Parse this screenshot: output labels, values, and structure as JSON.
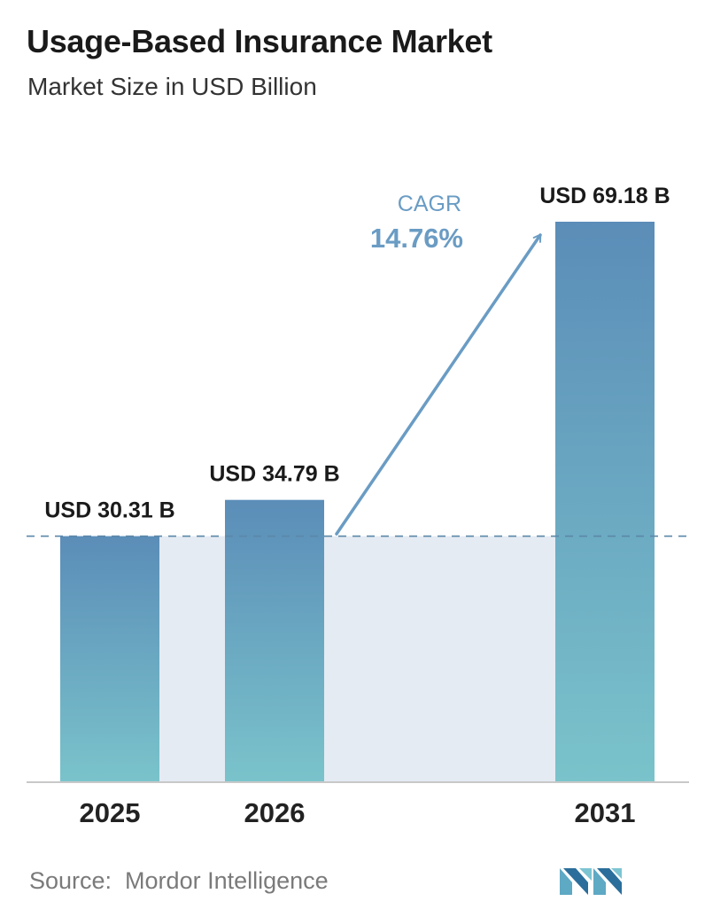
{
  "title": "Usage-Based Insurance Market",
  "subtitle": "Market Size in USD Billion",
  "source": "Source:  Mordor Intelligence",
  "logo_icon": "mordor-intelligence-logo",
  "colors": {
    "bar_top": "#5b8db8",
    "bar_bottom": "#7ac3cb",
    "band": "#e4ebf3",
    "axis": "#c8c8c8",
    "dashed": "#5b87a8",
    "cagr": "#6a9cc4",
    "title": "#1a1a1a"
  },
  "cagr": {
    "label": "CAGR",
    "value": "14.76%"
  },
  "chart_data": {
    "type": "bar",
    "categories": [
      "2025",
      "2026",
      "2031"
    ],
    "values": [
      30.31,
      34.79,
      69.18
    ],
    "data_labels": [
      "USD 30.31 B",
      "USD 34.79 B",
      "USD 69.18 B"
    ],
    "title": "Usage-Based Insurance Market",
    "subtitle": "Market Size in USD Billion",
    "reference_line": 30.31,
    "grid": false
  }
}
